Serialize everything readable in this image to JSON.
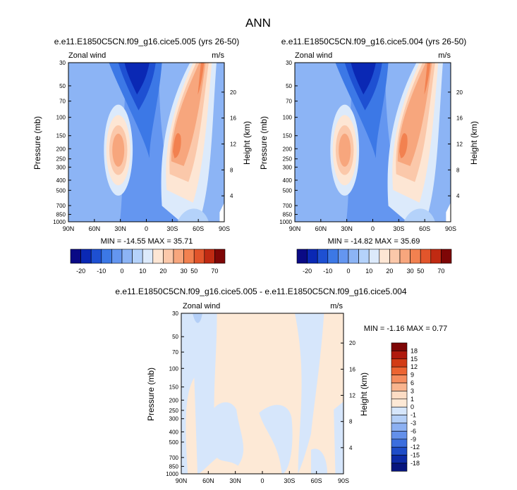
{
  "figure_title": "ANN",
  "panel_list_note": "three contour panels",
  "chart_data": [
    {
      "type": "contour",
      "title": "e.e11.E1850C5CN.f09_g16.cice5.005 (yrs 26-50)",
      "variable": "Zonal wind",
      "units": "m/s",
      "ylabel": "Pressure (mb)",
      "ylabel_right": "Height (km)",
      "x_ticks": [
        "90N",
        "60N",
        "30N",
        "0",
        "30S",
        "60S",
        "90S"
      ],
      "y_ticks": [
        "30",
        "50",
        "70",
        "100",
        "150",
        "200",
        "250",
        "300",
        "400",
        "500",
        "700",
        "850",
        "1000"
      ],
      "height_ticks": [
        "4",
        "8",
        "12",
        "16",
        "20"
      ],
      "stats": "MIN = -14.55  MAX = 35.71",
      "min": -14.55,
      "max": 35.71,
      "colorbar_labels": [
        "-20",
        "-10",
        "0",
        "10",
        "20",
        "30",
        "50",
        "70"
      ]
    },
    {
      "type": "contour",
      "title": "e.e11.E1850C5CN.f09_g16.cice5.004 (yrs 26-50)",
      "variable": "Zonal wind",
      "units": "m/s",
      "ylabel": "Pressure (mb)",
      "ylabel_right": "Height (km)",
      "x_ticks": [
        "90N",
        "60N",
        "30N",
        "0",
        "30S",
        "60S",
        "90S"
      ],
      "y_ticks": [
        "30",
        "50",
        "70",
        "100",
        "150",
        "200",
        "250",
        "300",
        "400",
        "500",
        "700",
        "850",
        "1000"
      ],
      "height_ticks": [
        "4",
        "8",
        "12",
        "16",
        "20"
      ],
      "stats": "MIN = -14.82  MAX = 35.69",
      "min": -14.82,
      "max": 35.69,
      "colorbar_labels": [
        "-20",
        "-10",
        "0",
        "10",
        "20",
        "30",
        "50",
        "70"
      ]
    },
    {
      "type": "contour",
      "title": "e.e11.E1850C5CN.f09_g16.cice5.005 - e.e11.E1850C5CN.f09_g16.cice5.004",
      "variable": "Zonal wind",
      "units": "m/s",
      "ylabel": "Pressure (mb)",
      "ylabel_right": "Height (km)",
      "x_ticks": [
        "90N",
        "60N",
        "30N",
        "0",
        "30S",
        "60S",
        "90S"
      ],
      "y_ticks": [
        "30",
        "50",
        "70",
        "100",
        "150",
        "200",
        "250",
        "300",
        "400",
        "500",
        "700",
        "850",
        "1000"
      ],
      "height_ticks": [
        "4",
        "8",
        "12",
        "16",
        "20"
      ],
      "stats": "MIN = -1.16  MAX = 0.77",
      "min": -1.16,
      "max": 0.77,
      "colorbar_labels": [
        "18",
        "15",
        "12",
        "9",
        "6",
        "3",
        "1",
        "0",
        "-1",
        "-3",
        "-6",
        "-9",
        "-12",
        "-15",
        "-18"
      ]
    }
  ],
  "colors": {
    "abs_scale": [
      "#0a0a85",
      "#0a28b4",
      "#1e50d2",
      "#3c78e6",
      "#6496f0",
      "#8cb4f5",
      "#b4d2fa",
      "#dceafb",
      "#fde6d4",
      "#fbc8aa",
      "#f7a67d",
      "#f28150",
      "#e2552b",
      "#c02a12",
      "#7e0606"
    ],
    "diff_scale": [
      "#7e0606",
      "#b01a0e",
      "#d23c16",
      "#ec6432",
      "#f58c5e",
      "#f9b48e",
      "#fcdcc4",
      "#fde9d6",
      "#d6e6fb",
      "#b4cff7",
      "#8cb0f2",
      "#6490ea",
      "#3c6ede",
      "#1e4cc8",
      "#0c2aa6",
      "#06147e"
    ]
  }
}
